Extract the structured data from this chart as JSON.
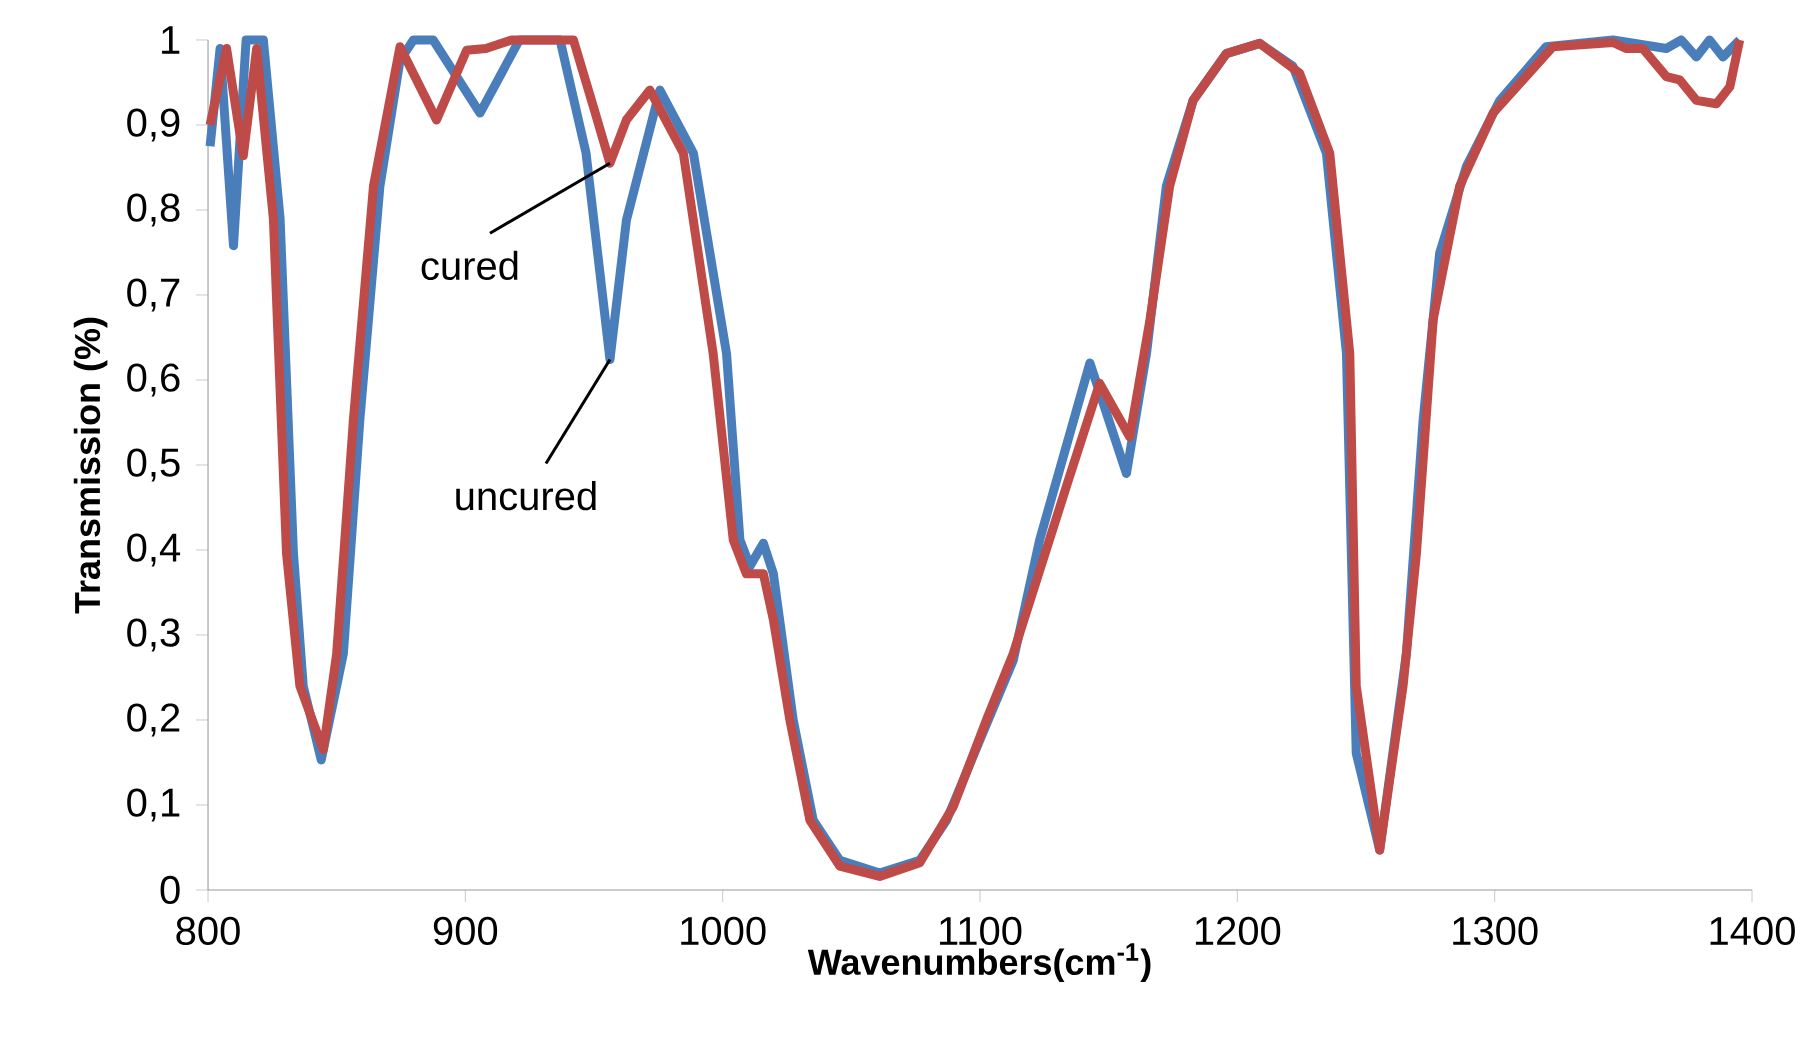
{
  "chart_data": {
    "type": "line",
    "xlabel": "**Wavenumbers(cm$^{-1}$)**",
    "ylabel": "**Transmission (%)**",
    "xlim": [
      800,
      1400
    ],
    "xticks": [
      800,
      900,
      1000,
      1100,
      1200,
      1300,
      1400
    ],
    "ylim": [
      0,
      1
    ],
    "yticks": [
      0,
      {
        "value": 0.1,
        "label": "0,1"
      },
      {
        "value": 0.2,
        "label": "0,2"
      },
      {
        "value": 0.3,
        "label": "0,3"
      },
      {
        "value": 0.4,
        "label": "0,4"
      },
      {
        "value": 0.5,
        "label": "0,5"
      },
      {
        "value": 0.6,
        "label": "0,6"
      },
      {
        "value": 0.7,
        "label": "0,7"
      },
      {
        "value": 0.8,
        "label": "0,8"
      },
      {
        "value": 0.9,
        "label": "0,9"
      },
      1
    ],
    "grid": false,
    "marker": "none",
    "line_style": "solid",
    "annotations": [
      {
        "text": "cured",
        "x": 956.2,
        "y": 0.855
      },
      {
        "text": "uncured",
        "x": 956.2,
        "y": 0.624
      }
    ],
    "series": [
      {
        "color": "#4a7ebb",
        "x": [
          800.8,
          804.7,
          809.9,
          814.8,
          821.5,
          828,
          833.2,
          837,
          844,
          852.6,
          859,
          866.8,
          874.6,
          879.8,
          887.5,
          905.7,
          921,
          936.8,
          946.9,
          956.2,
          962.6,
          975.6,
          988.6,
          1001.5,
          1006.7,
          1010.6,
          1015.8,
          1019.7,
          1027.4,
          1035.2,
          1045.5,
          1061,
          1076.6,
          1087,
          1099.9,
          1112.9,
          1123.2,
          1142.7,
          1156.9,
          1164.7,
          1172.4,
          1182.8,
          1195.7,
          1208.7,
          1221.6,
          1234.6,
          1242.4,
          1246.2,
          1255.3,
          1265.7,
          1272.2,
          1278.6,
          1289,
          1302,
          1320,
          1346,
          1366.7,
          1372.5,
          1378.4,
          1383.5,
          1388.7,
          1395.2
        ],
        "values": [
          0.875,
          0.99,
          0.758,
          1,
          1,
          0.79,
          0.396,
          0.24,
          0.153,
          0.278,
          0.553,
          0.828,
          0.976,
          1,
          1,
          0.914,
          1,
          1,
          0.867,
          0.624,
          0.788,
          0.941,
          0.867,
          0.631,
          0.412,
          0.381,
          0.408,
          0.372,
          0.2,
          0.082,
          0.035,
          0.02,
          0.035,
          0.082,
          0.176,
          0.27,
          0.412,
          0.62,
          0.49,
          0.631,
          0.828,
          0.929,
          0.984,
          0.996,
          0.969,
          0.867,
          0.631,
          0.161,
          0.047,
          0.278,
          0.553,
          0.749,
          0.851,
          0.929,
          0.992,
          1,
          0.99,
          1,
          0.98,
          1,
          0.98,
          1
        ]
      },
      {
        "color": "#be4b48",
        "x": [
          800.8,
          807.2,
          813.7,
          818.9,
          825.4,
          830.5,
          835.7,
          844.8,
          850,
          856.5,
          864.3,
          874.6,
          888.8,
          900.5,
          908,
          918,
          942,
          949.7,
          956.2,
          962.6,
          971.7,
          984.7,
          996.3,
          1004.1,
          1009.2,
          1015.8,
          1019.7,
          1026.1,
          1033.9,
          1045.5,
          1061,
          1076.6,
          1089.6,
          1102.5,
          1112.9,
          1133.6,
          1146.5,
          1158.2,
          1166,
          1173.7,
          1182.8,
          1195.7,
          1208.7,
          1224.2,
          1235.9,
          1243.7,
          1246.2,
          1255.3,
          1264.4,
          1269.6,
          1276.1,
          1286.4,
          1299.4,
          1322.6,
          1346,
          1351,
          1357.5,
          1366.7,
          1371.9,
          1378.4,
          1386.2,
          1391.4,
          1395.2
        ],
        "values": [
          0.9,
          0.99,
          0.864,
          0.99,
          0.79,
          0.396,
          0.24,
          0.165,
          0.278,
          0.553,
          0.828,
          0.992,
          0.906,
          0.988,
          0.99,
          1,
          1,
          0.922,
          0.855,
          0.906,
          0.941,
          0.867,
          0.631,
          0.412,
          0.372,
          0.372,
          0.318,
          0.2,
          0.082,
          0.028,
          0.016,
          0.032,
          0.098,
          0.2,
          0.278,
          0.475,
          0.596,
          0.533,
          0.67,
          0.828,
          0.929,
          0.984,
          0.996,
          0.961,
          0.867,
          0.631,
          0.24,
          0.047,
          0.24,
          0.396,
          0.671,
          0.828,
          0.914,
          0.992,
          0.997,
          0.99,
          0.99,
          0.957,
          0.953,
          0.929,
          0.925,
          0.945,
          1
        ]
      }
    ]
  }
}
